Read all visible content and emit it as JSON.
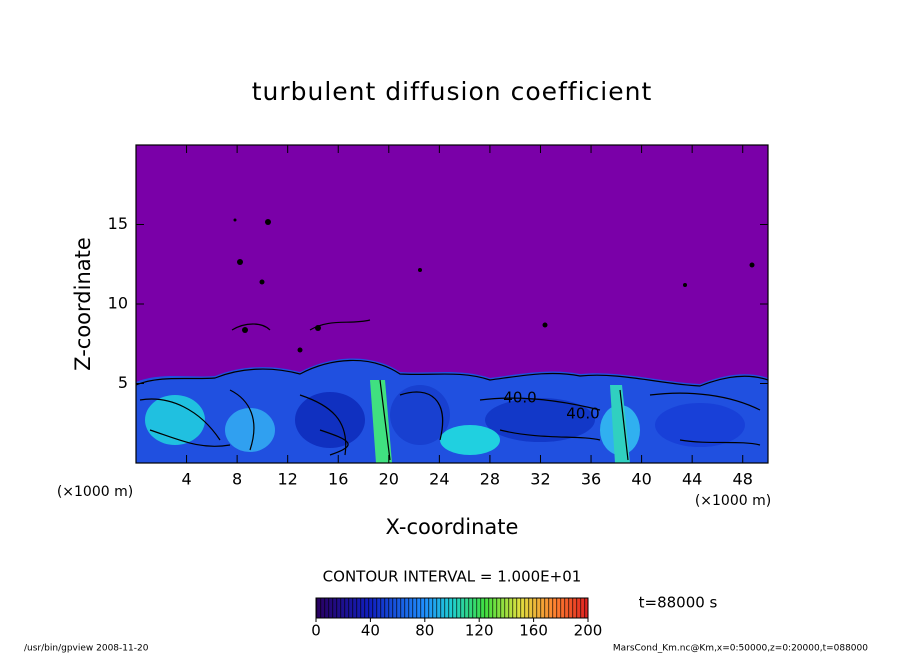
{
  "chart_data": {
    "type": "contour",
    "title": "turbulent diffusion coefficient",
    "xlabel": "X-coordinate",
    "ylabel": "Z-coordinate",
    "x_unit": "(×1000 m)",
    "x_unit_right": "(×1000 m)",
    "xlim": [
      0,
      50
    ],
    "xticks": [
      4,
      8,
      12,
      16,
      20,
      24,
      28,
      32,
      36,
      40,
      44,
      48
    ],
    "ylim": [
      0,
      20
    ],
    "yticks": [
      5,
      10,
      15
    ],
    "contour_labels": [
      "40.0",
      "40.0"
    ],
    "contour_interval": "CONTOUR INTERVAL = 1.000E+01",
    "colorbar": {
      "lim": [
        0,
        200
      ],
      "ticks": [
        0,
        40,
        80,
        120,
        160,
        200
      ]
    },
    "time_label": "t=88000 s",
    "footer_left": "/usr/bin/gpview  2008-11-20",
    "footer_right": "MarsCond_Km.nc@Km,x=0:50000,z=0:20000,t=088000"
  }
}
